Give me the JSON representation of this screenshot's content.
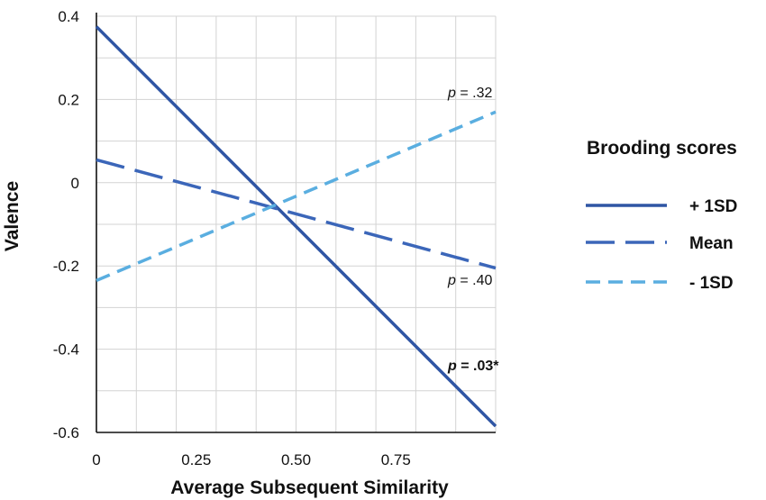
{
  "chart_data": {
    "type": "line",
    "xlabel": "Average Subsequent Similarity",
    "ylabel": "Valence",
    "xlim": [
      0,
      1
    ],
    "ylim": [
      -0.6,
      0.4
    ],
    "x_ticks": [
      0,
      0.25,
      0.5,
      0.75
    ],
    "x_tick_labels": [
      "0",
      "0.25",
      "0.50",
      "0.75"
    ],
    "y_ticks": [
      0.4,
      0.2,
      0,
      -0.2,
      -0.4,
      -0.6
    ],
    "y_tick_labels": [
      "0.4",
      "0.2",
      "0",
      "-0.2",
      "-0.4",
      "-0.6"
    ],
    "grid": true,
    "legend": {
      "title": "Brooding scores",
      "placement": "right"
    },
    "series": [
      {
        "name": "+ 1SD",
        "color": "#2f55a4",
        "style": "solid",
        "x": [
          0,
          1
        ],
        "y": [
          0.375,
          -0.585
        ]
      },
      {
        "name": "Mean",
        "color": "#3b66b9",
        "style": "long-dash",
        "x": [
          0,
          1
        ],
        "y": [
          0.055,
          -0.205
        ]
      },
      {
        "name": "- 1SD",
        "color": "#5aaee0",
        "style": "dash",
        "x": [
          0,
          1
        ],
        "y": [
          -0.235,
          0.17
        ]
      }
    ],
    "annotations": [
      {
        "p_letter": "p",
        "rest": " = .32",
        "bold": false,
        "series": "- 1SD"
      },
      {
        "p_letter": "p",
        "rest": " = .40",
        "bold": false,
        "series": "Mean"
      },
      {
        "p_letter": "p",
        "rest": " = .03*",
        "bold": true,
        "series": "+ 1SD"
      }
    ]
  }
}
